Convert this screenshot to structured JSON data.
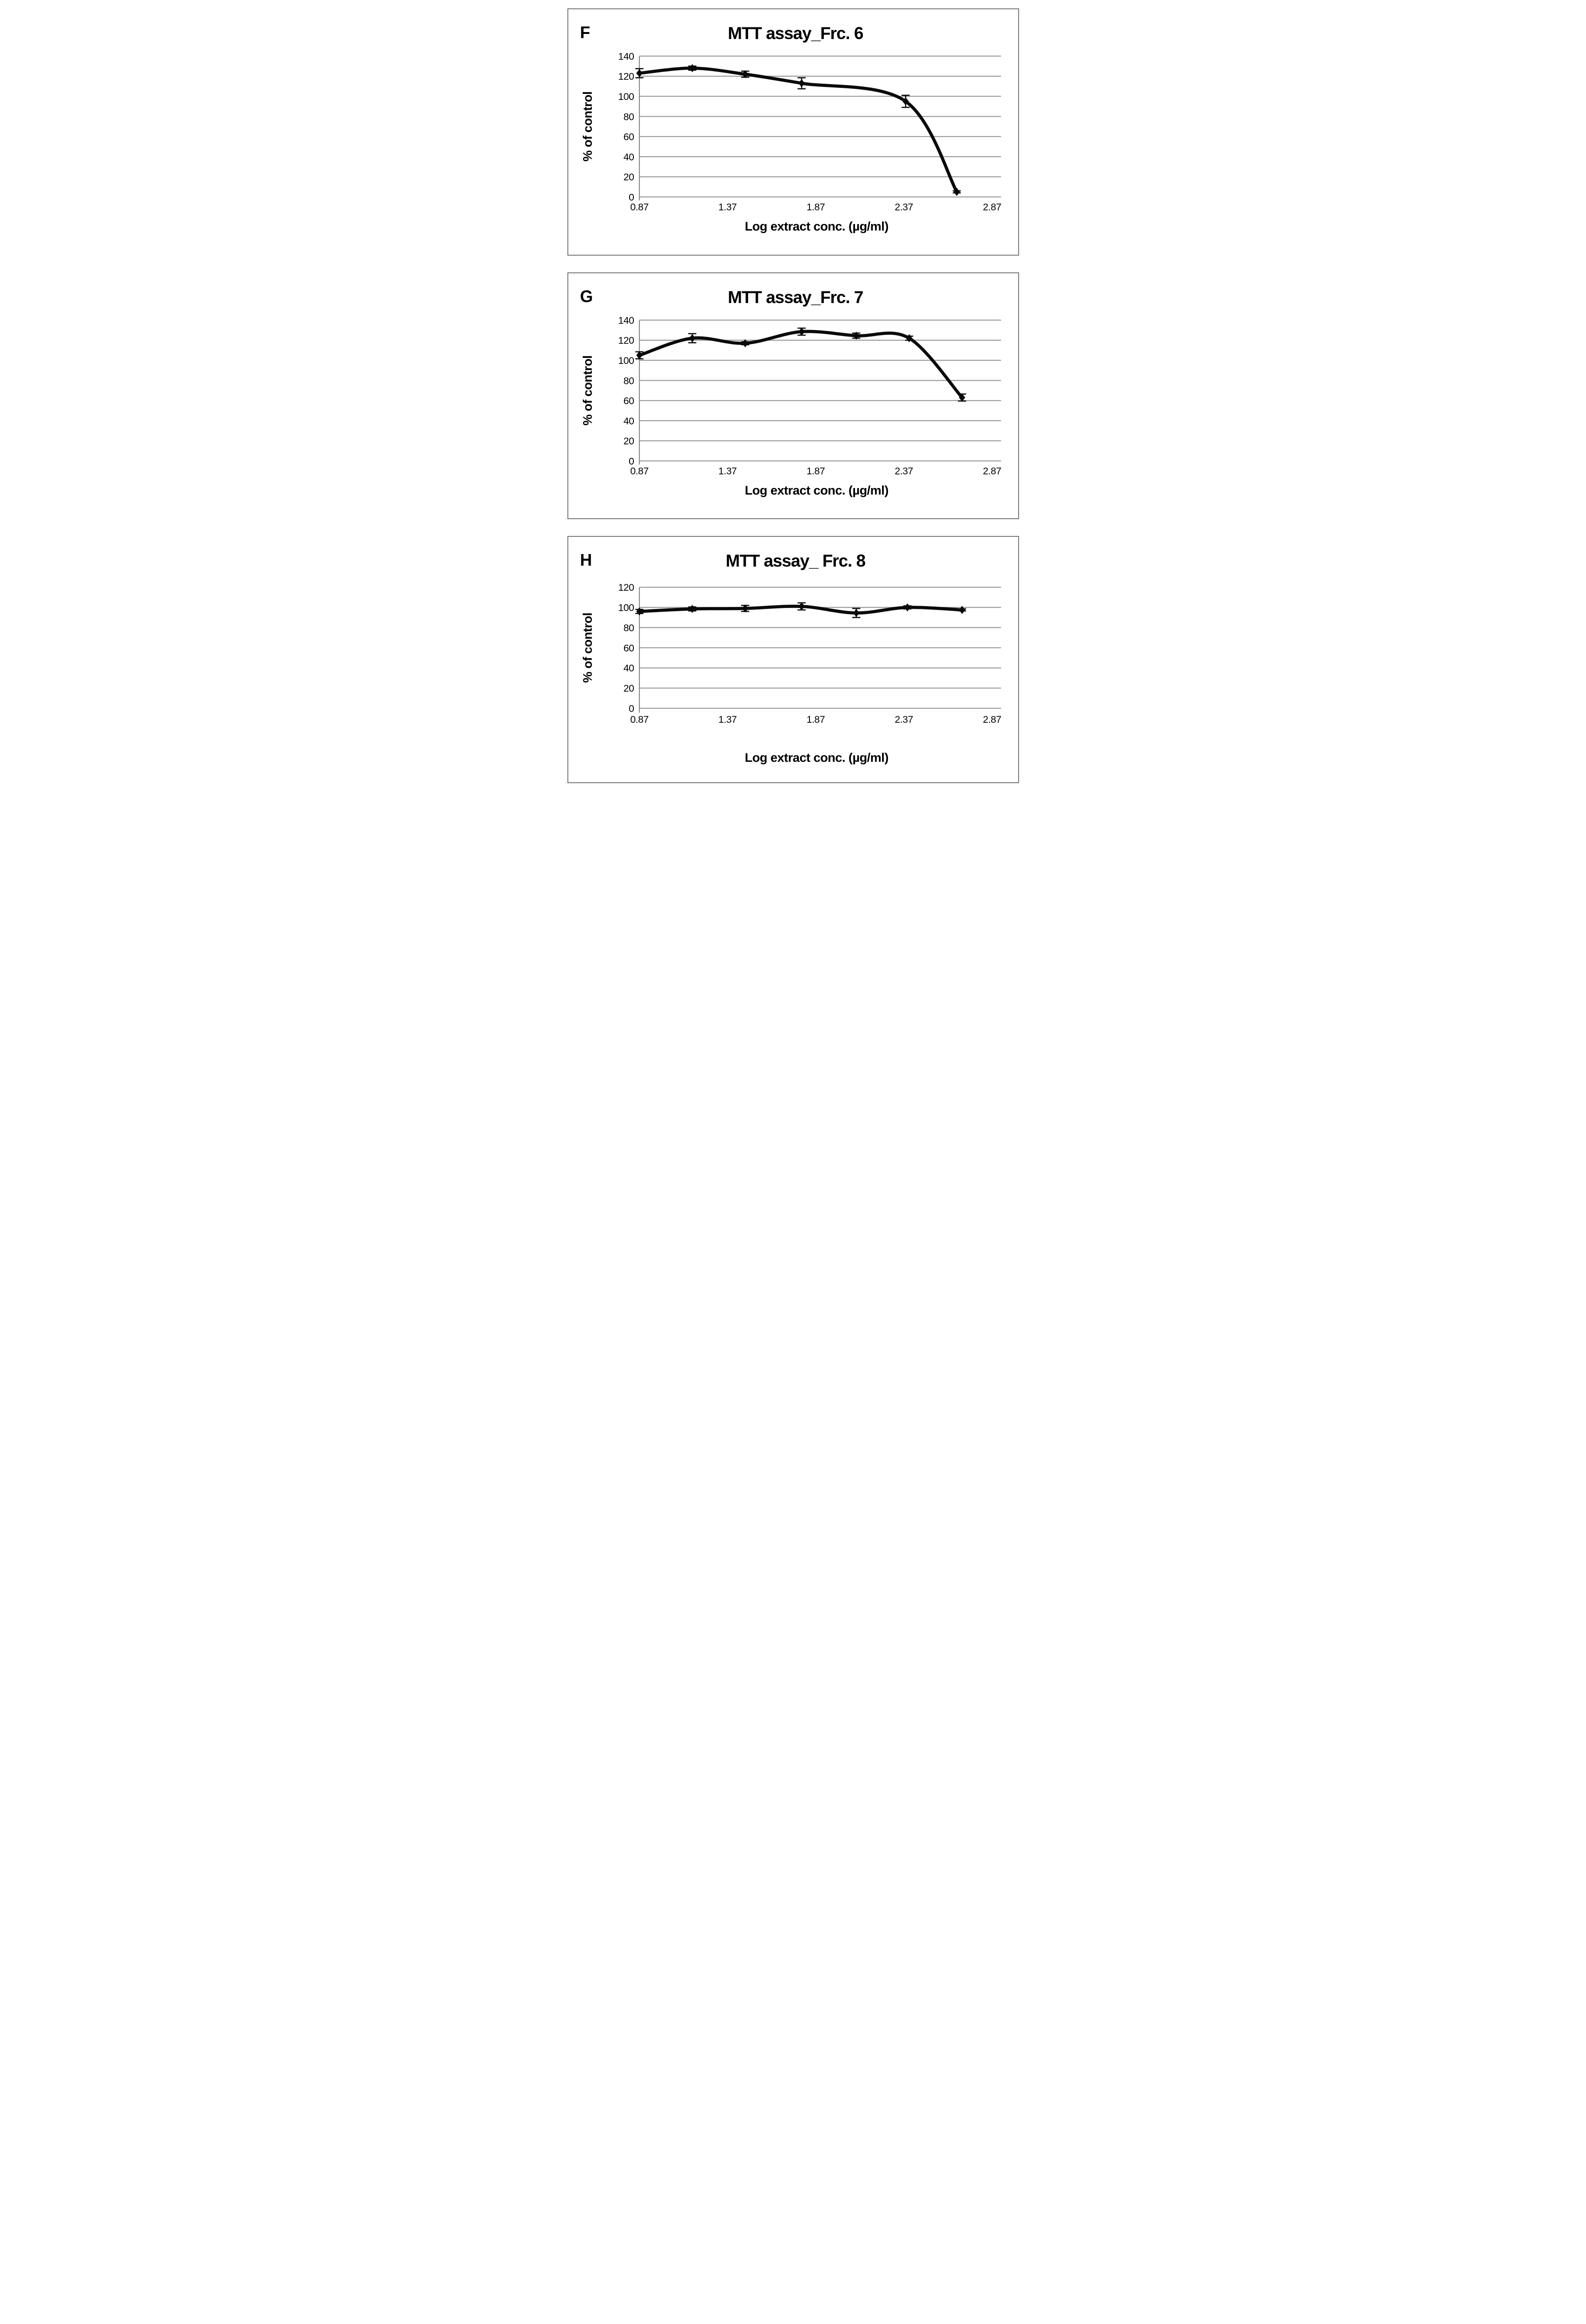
{
  "figure": {
    "background": "#ffffff",
    "panel_border_color": "#7a7a7a",
    "grid_color": "#999999",
    "axis_color": "#8a8a8a",
    "line_color": "#0a0a0a",
    "marker": "diamond",
    "error_bars": true
  },
  "chart_data": [
    {
      "type": "line",
      "panel_label": "F",
      "title": "MTT assay_Frc. 6",
      "xlabel": "Log extract conc. (µg/ml)",
      "ylabel": "% of control",
      "xlim": [
        0.87,
        2.92
      ],
      "ylim": [
        0,
        140
      ],
      "xticks": [
        0.87,
        1.37,
        1.87,
        2.37,
        2.87
      ],
      "yticks": [
        0,
        20,
        40,
        60,
        80,
        100,
        120,
        140
      ],
      "grid": "horizontal",
      "legend": false,
      "x": [
        0.87,
        1.17,
        1.47,
        1.79,
        2.38,
        2.67
      ],
      "y": [
        123,
        128,
        122,
        113,
        95,
        5
      ],
      "yerr": [
        4.5,
        2,
        3,
        5.5,
        6,
        1
      ]
    },
    {
      "type": "line",
      "panel_label": "G",
      "title": "MTT assay_Frc. 7",
      "xlabel": "Log extract conc. (µg/ml)",
      "ylabel": "% of control",
      "xlim": [
        0.87,
        2.92
      ],
      "ylim": [
        0,
        140
      ],
      "xticks": [
        0.87,
        1.37,
        1.87,
        2.37,
        2.87
      ],
      "yticks": [
        0,
        20,
        40,
        60,
        80,
        100,
        120,
        140
      ],
      "grid": "horizontal",
      "legend": false,
      "x": [
        0.87,
        1.17,
        1.47,
        1.79,
        2.1,
        2.4,
        2.7
      ],
      "y": [
        105,
        122,
        117,
        128.5,
        124.5,
        122,
        63
      ],
      "yerr": [
        3.5,
        4.5,
        1.5,
        3.5,
        2.5,
        2,
        3.5
      ]
    },
    {
      "type": "line",
      "panel_label": "H",
      "title": "MTT assay_ Frc. 8",
      "xlabel": "Log extract conc. (µg/ml)",
      "ylabel": "% of control",
      "xlim": [
        0.87,
        2.92
      ],
      "ylim": [
        0,
        120
      ],
      "xticks": [
        0.87,
        1.37,
        1.87,
        2.37,
        2.87
      ],
      "yticks": [
        0,
        20,
        40,
        60,
        80,
        100,
        120
      ],
      "grid": "horizontal",
      "legend": false,
      "x": [
        0.87,
        1.17,
        1.47,
        1.79,
        2.1,
        2.39,
        2.7
      ],
      "y": [
        96,
        98.5,
        99,
        101,
        94.5,
        100,
        97.5
      ],
      "yerr": [
        2,
        2,
        3,
        3.5,
        4.5,
        1.5,
        1
      ]
    }
  ]
}
